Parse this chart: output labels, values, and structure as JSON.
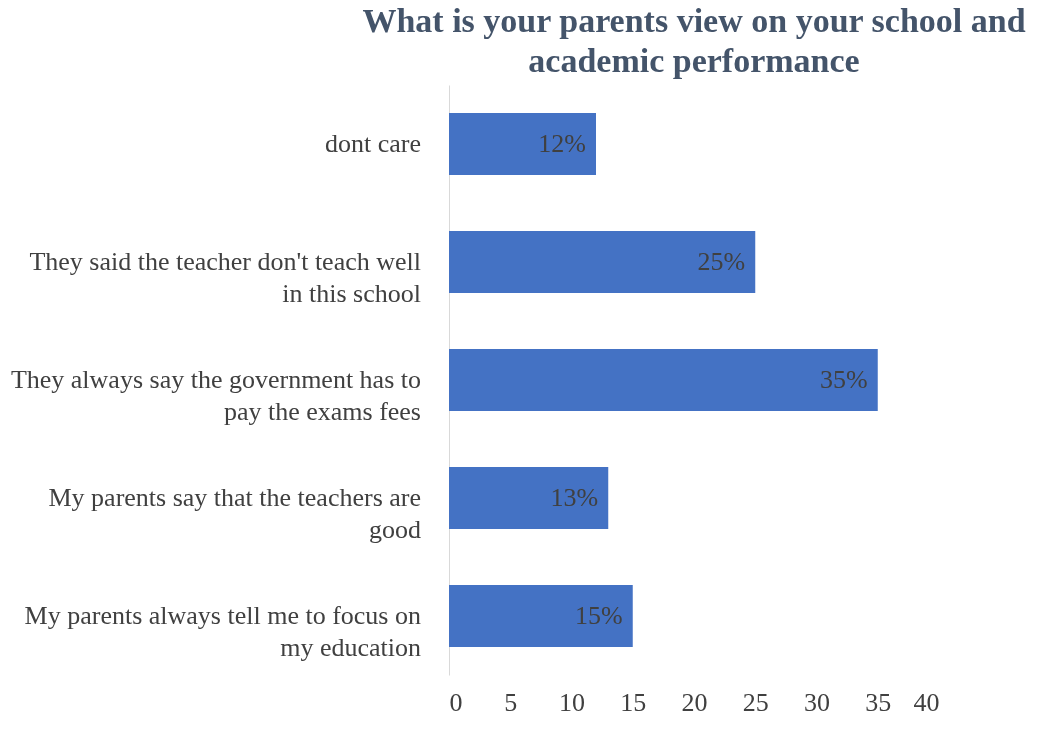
{
  "chart_data": {
    "type": "bar",
    "orientation": "horizontal",
    "title": "What is your parents view on your school and academic performance",
    "categories": [
      "dont care",
      "They said the teacher don't teach well in this school",
      "They always say the government has to pay the exams fees",
      "My parents say that the teachers are good",
      "My parents always tell me to focus on my education"
    ],
    "values": [
      12,
      25,
      35,
      13,
      15
    ],
    "value_labels": [
      "12%",
      "25%",
      "35%",
      "13%",
      "15%"
    ],
    "color": "#4472c4",
    "xlim": [
      0,
      40
    ],
    "xticks": [
      0,
      5,
      10,
      15,
      20,
      25,
      30,
      35,
      40
    ],
    "grid": false
  }
}
